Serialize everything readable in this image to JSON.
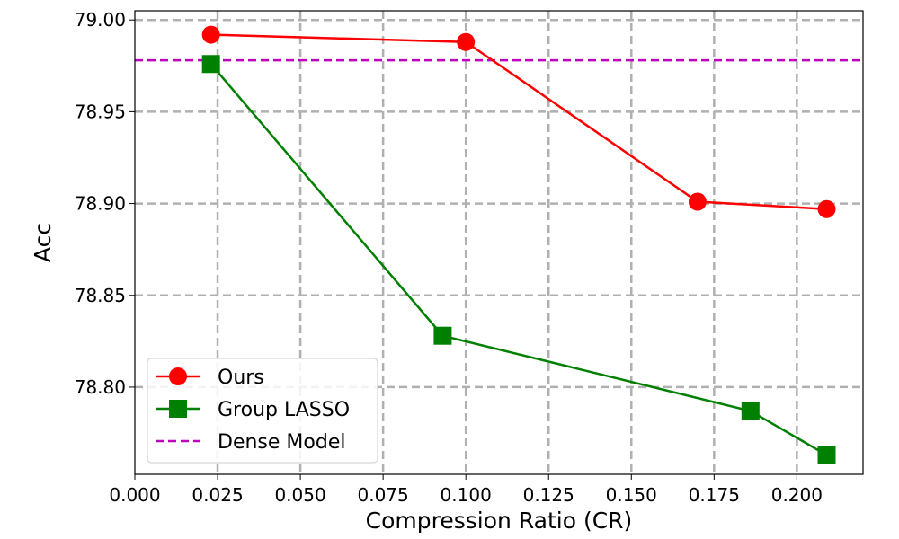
{
  "chart_data": {
    "type": "line",
    "title": "",
    "xlabel": "Compression Ratio (CR)",
    "ylabel": "Acc",
    "xlim": [
      0.0,
      0.22
    ],
    "ylim": [
      78.7525,
      79.005
    ],
    "xticks": [
      "0.000",
      "0.025",
      "0.050",
      "0.075",
      "0.100",
      "0.125",
      "0.150",
      "0.175",
      "0.200"
    ],
    "yticks": [
      "78.80",
      "78.85",
      "78.90",
      "78.95",
      "79.00"
    ],
    "grid": true,
    "grid_style": "dashed",
    "legend_position": "lower-left",
    "series": [
      {
        "name": "Ours",
        "color": "#ff0000",
        "marker": "circle",
        "x": [
          0.023,
          0.1,
          0.17,
          0.209
        ],
        "y": [
          78.992,
          78.988,
          78.901,
          78.897
        ]
      },
      {
        "name": "Group LASSO",
        "color": "#008000",
        "marker": "square",
        "x": [
          0.023,
          0.093,
          0.186,
          0.209
        ],
        "y": [
          78.976,
          78.828,
          78.787,
          78.763
        ]
      }
    ],
    "reference_lines": [
      {
        "name": "Dense Model",
        "color": "#bf00bf",
        "style": "dashed",
        "y": 78.978
      }
    ]
  }
}
